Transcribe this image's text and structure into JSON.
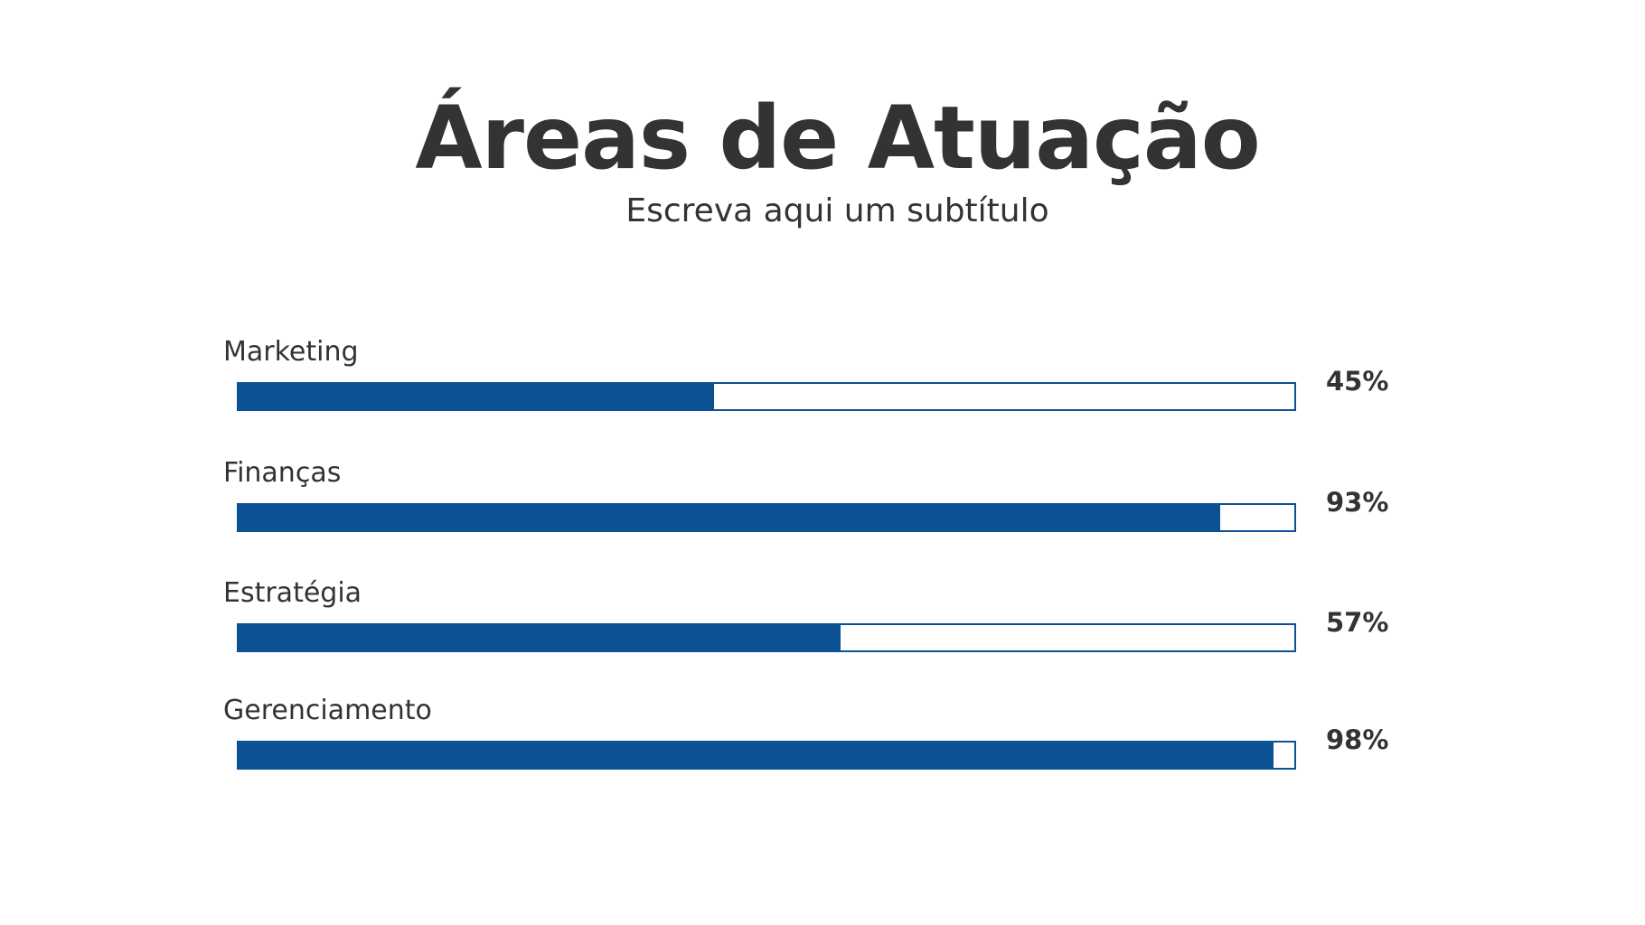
{
  "chart_data": {
    "type": "bar",
    "orientation": "horizontal",
    "title": "Áreas de Atuação",
    "subtitle": "Escreva aqui um subtítulo",
    "categories": [
      "Marketing",
      "Finanças",
      "Estratégia",
      "Gerenciamento"
    ],
    "values": [
      45,
      93,
      57,
      98
    ],
    "value_labels": [
      "45%",
      "93%",
      "57%",
      "98%"
    ],
    "xlim": [
      0,
      100
    ],
    "grid": false,
    "legend": "none",
    "bar_color": "#0c5194",
    "text_color": "#333333"
  }
}
